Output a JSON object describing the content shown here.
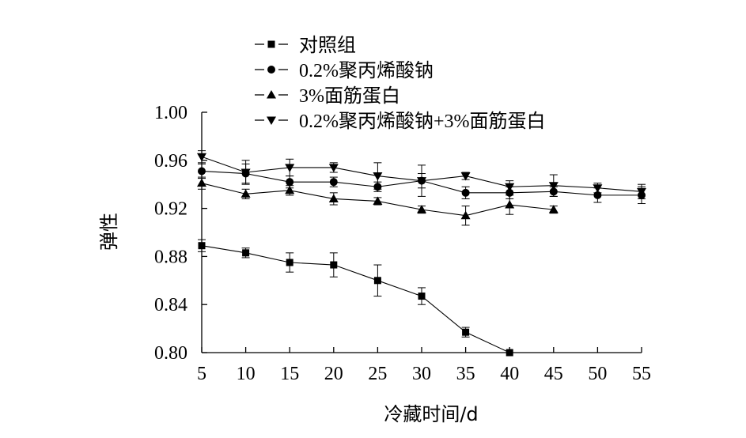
{
  "chart_data": {
    "type": "line",
    "xlabel": "冷藏时间/d",
    "ylabel": "弹性",
    "xlim": [
      5,
      55
    ],
    "ylim": [
      0.8,
      1.0
    ],
    "x_ticks": [
      "5",
      "10",
      "15",
      "20",
      "25",
      "30",
      "35",
      "40",
      "45",
      "50",
      "55"
    ],
    "y_ticks": [
      "0.80",
      "0.84",
      "0.88",
      "0.92",
      "0.96",
      "1.00"
    ],
    "legend_position": "top-right",
    "series": [
      {
        "name": "对照组",
        "marker": "square",
        "x": [
          5,
          10,
          15,
          20,
          25,
          30,
          35,
          40
        ],
        "values": [
          0.889,
          0.883,
          0.875,
          0.873,
          0.86,
          0.847,
          0.817,
          0.8
        ],
        "errors": [
          0.005,
          0.004,
          0.008,
          0.01,
          0.013,
          0.007,
          0.004,
          0.0
        ]
      },
      {
        "name": "0.2%聚丙烯酸钠",
        "marker": "circle",
        "x": [
          5,
          10,
          15,
          20,
          25,
          30,
          35,
          40,
          45,
          50,
          55
        ],
        "values": [
          0.951,
          0.949,
          0.942,
          0.942,
          0.938,
          0.943,
          0.933,
          0.933,
          0.934,
          0.931,
          0.931
        ],
        "errors": [
          0.006,
          0.008,
          0.005,
          0.004,
          0.004,
          0.006,
          0.005,
          0.005,
          0.004,
          0.006,
          0.007
        ]
      },
      {
        "name": "3%面筋蛋白",
        "marker": "triangle-up",
        "x": [
          5,
          10,
          15,
          20,
          25,
          30,
          35,
          40,
          45
        ],
        "values": [
          0.941,
          0.932,
          0.935,
          0.928,
          0.926,
          0.919,
          0.914,
          0.923,
          0.919
        ],
        "errors": [
          0.005,
          0.004,
          0.004,
          0.005,
          0.003,
          0.003,
          0.008,
          0.008,
          0.003
        ]
      },
      {
        "name": "0.2%聚丙烯酸钠+3%面筋蛋白",
        "marker": "triangle-down",
        "x": [
          5,
          10,
          15,
          20,
          25,
          30,
          35,
          40,
          45,
          50,
          55
        ],
        "values": [
          0.963,
          0.95,
          0.954,
          0.954,
          0.947,
          0.943,
          0.947,
          0.938,
          0.939,
          0.937,
          0.934
        ],
        "errors": [
          0.005,
          0.01,
          0.007,
          0.004,
          0.011,
          0.013,
          0.003,
          0.005,
          0.009,
          0.004,
          0.006
        ]
      }
    ]
  }
}
